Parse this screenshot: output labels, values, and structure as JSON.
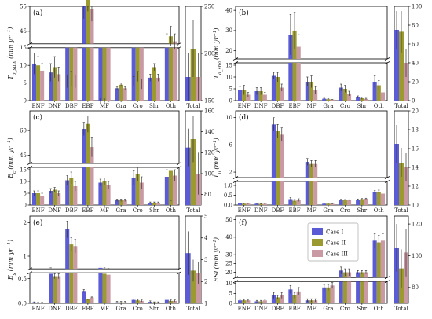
{
  "legend": [
    {
      "name": "Case I",
      "color": "#5b5bd6"
    },
    {
      "name": "Case II",
      "color": "#9a9a30"
    },
    {
      "name": "Case III",
      "color": "#c99aa3"
    }
  ],
  "categories": [
    "ENF",
    "DNF",
    "DBF",
    "EBF",
    "MF",
    "Gra",
    "Cro",
    "Shr",
    "Oth"
  ],
  "total_label": "Total",
  "chart_data": [
    {
      "type": "bar",
      "panel": "(a)",
      "ylabel": "T_o_sum (mm yr⁻¹)",
      "ylabel_parts": {
        "main": "T",
        "sub": "o_sum",
        "unit": "(mm yr",
        "exp": "−1",
        "close": ")"
      },
      "lower_range": [
        0,
        15
      ],
      "lower_ticks": [
        0,
        5,
        10,
        15
      ],
      "upper_range": [
        40,
        55
      ],
      "upper_ticks": [
        45,
        55
      ],
      "series": [
        {
          "name": "Case I",
          "values": [
            10.5,
            8,
            25,
            55,
            17,
            3.5,
            25,
            6.5,
            40
          ],
          "err": [
            3,
            2.5,
            2.5,
            5,
            1,
            0.5,
            2,
            1,
            4
          ]
        },
        {
          "name": "Case II",
          "values": [
            10,
            9.5,
            26,
            59,
            17,
            4.5,
            27,
            9.5,
            43
          ],
          "err": [
            2.5,
            3,
            3,
            6,
            1,
            0.5,
            2,
            1,
            4
          ]
        },
        {
          "name": "Case III",
          "values": [
            8.5,
            7.5,
            25,
            54,
            16,
            3.5,
            24,
            6.5,
            41
          ],
          "err": [
            2,
            2,
            2.5,
            5,
            1,
            0.5,
            2,
            1,
            3
          ]
        }
      ],
      "total": {
        "range": [
          150,
          250
        ],
        "ticks": [
          150,
          200,
          250
        ],
        "values": [
          175,
          205,
          175
        ],
        "err": [
          25,
          30,
          25
        ]
      }
    },
    {
      "type": "bar",
      "panel": "(b)",
      "ylabel": "T_o_sha (mm yr⁻¹)",
      "ylabel_parts": {
        "main": "T",
        "sub": "o_sha",
        "unit": "(mm yr",
        "exp": "−1",
        "close": ")"
      },
      "lower_range": [
        0,
        16
      ],
      "lower_ticks": [
        0,
        5,
        10,
        15
      ],
      "upper_range": [
        16,
        42
      ],
      "upper_ticks": [
        20,
        30,
        40
      ],
      "series": [
        {
          "name": "Case I",
          "values": [
            4.5,
            4,
            10.5,
            28,
            8,
            0.8,
            5.5,
            1.5,
            8
          ],
          "err": [
            1.5,
            1.5,
            1.5,
            10,
            2,
            0.2,
            1.5,
            0.5,
            2.5
          ]
        },
        {
          "name": "Case II",
          "values": [
            4.5,
            4,
            10,
            30,
            8,
            0.6,
            5,
            1,
            6.5
          ],
          "err": [
            2,
            1.5,
            2,
            9,
            2.5,
            0.2,
            1.5,
            0.5,
            2
          ]
        },
        {
          "name": "Case III",
          "values": [
            2.5,
            2.5,
            5.5,
            22,
            4.5,
            0.4,
            3,
            0.7,
            3.5
          ],
          "err": [
            1,
            1,
            1.5,
            6,
            1.5,
            0.1,
            1,
            0.3,
            1
          ]
        }
      ],
      "total": {
        "range": [
          0,
          100
        ],
        "ticks": [
          0,
          20,
          40,
          60,
          80,
          100
        ],
        "values": [
          75,
          73,
          40
        ],
        "err": [
          20,
          22,
          15
        ]
      }
    },
    {
      "type": "bar",
      "panel": "(c)",
      "ylabel": "E_c (mm yr⁻¹)",
      "ylabel_parts": {
        "main": "E",
        "sub": "c",
        "unit": "(mm yr",
        "exp": "−1",
        "close": ")"
      },
      "lower_range": [
        0,
        16
      ],
      "lower_ticks": [
        0,
        5,
        10,
        15
      ],
      "upper_range": [
        40,
        72
      ],
      "upper_ticks": [
        45,
        60
      ],
      "series": [
        {
          "name": "Case I",
          "values": [
            5,
            6,
            10.5,
            61,
            9.5,
            2,
            11.5,
            1,
            12
          ],
          "err": [
            1,
            1,
            2,
            4,
            1.5,
            0.5,
            3,
            0.3,
            3
          ]
        },
        {
          "name": "Case II",
          "values": [
            5,
            6.5,
            11.5,
            64,
            10,
            2,
            13,
            1,
            14.5
          ],
          "err": [
            1,
            1,
            2.5,
            5,
            1.5,
            0.5,
            3,
            0.3,
            3
          ]
        },
        {
          "name": "Case III",
          "values": [
            4,
            5,
            8,
            50,
            8.5,
            2,
            9.5,
            1,
            12.5
          ],
          "err": [
            1,
            1,
            2,
            6,
            1.5,
            0.5,
            2.5,
            0.3,
            2.5
          ]
        }
      ],
      "total": {
        "range": [
          70,
          160
        ],
        "ticks": [
          80,
          100,
          120,
          140,
          160
        ],
        "values": [
          125,
          133,
          100
        ],
        "err": [
          18,
          22,
          20
        ]
      }
    },
    {
      "type": "bar",
      "panel": "(d)",
      "ylabel": "T_u (mm yr⁻¹)",
      "ylabel_parts": {
        "main": "T",
        "sub": "u",
        "unit": "(mm yr",
        "exp": "−1",
        "close": ")"
      },
      "lower_range": [
        0,
        1.2
      ],
      "lower_ticks": [
        0.0,
        0.5,
        1.0
      ],
      "upper_range": [
        1.2,
        11
      ],
      "upper_ticks": [
        2,
        6,
        10
      ],
      "series": [
        {
          "name": "Case I",
          "values": [
            0.08,
            0.07,
            9,
            0.3,
            3.5,
            0.07,
            0.27,
            0.28,
            0.65
          ],
          "err": [
            0.02,
            0.02,
            1,
            0.08,
            0.5,
            0.02,
            0.02,
            0.03,
            0.08
          ]
        },
        {
          "name": "Case II",
          "values": [
            0.07,
            0.06,
            8,
            0.22,
            3.2,
            0.07,
            0.26,
            0.3,
            0.68
          ],
          "err": [
            0.02,
            0.02,
            1,
            0.06,
            0.5,
            0.02,
            0.02,
            0.03,
            0.08
          ]
        },
        {
          "name": "Case III",
          "values": [
            0.07,
            0.06,
            7.5,
            0.25,
            3.2,
            0.06,
            0.25,
            0.32,
            0.58
          ],
          "err": [
            0.02,
            0.02,
            1,
            0.07,
            0.5,
            0.02,
            0.02,
            0.03,
            0.08
          ]
        }
      ],
      "total": {
        "range": [
          10,
          20
        ],
        "ticks": [
          10,
          12,
          14,
          16,
          18,
          20
        ],
        "values": [
          16.5,
          14.5,
          14
        ],
        "err": [
          2,
          1.5,
          1.5
        ]
      }
    },
    {
      "type": "bar",
      "panel": "(e)",
      "ylabel": "E_s (mm yr⁻¹)",
      "ylabel_parts": {
        "main": "E",
        "sub": "s",
        "unit": "(mm yr",
        "exp": "−1",
        "close": ")"
      },
      "lower_range": [
        0,
        0.62
      ],
      "lower_ticks": [
        0.0,
        0.5
      ],
      "upper_range": [
        0.62,
        2.2
      ],
      "upper_ticks": [
        1,
        2
      ],
      "series": [
        {
          "name": "Case I",
          "values": [
            0.02,
            0.6,
            1.8,
            0.25,
            0.65,
            0.02,
            0.07,
            0.03,
            0.07
          ],
          "err": [
            0.01,
            0.05,
            0.25,
            0.03,
            0.05,
            0.02,
            0.02,
            0.02,
            0.02
          ]
        },
        {
          "name": "Case II",
          "values": [
            0.01,
            0.55,
            1.35,
            0.08,
            0.6,
            0.02,
            0.06,
            0.02,
            0.05
          ],
          "err": [
            0.01,
            0.05,
            0.2,
            0.01,
            0.05,
            0.02,
            0.02,
            0.01,
            0.02
          ]
        },
        {
          "name": "Case III",
          "values": [
            0.01,
            0.55,
            1.3,
            0.12,
            0.58,
            0.02,
            0.05,
            0.02,
            0.05
          ],
          "err": [
            0.01,
            0.05,
            0.2,
            0.01,
            0.05,
            0.02,
            0.02,
            0.01,
            0.02
          ]
        }
      ],
      "total": {
        "range": [
          1,
          5
        ],
        "ticks": [
          1,
          2,
          3,
          4,
          5
        ],
        "values": [
          3.3,
          2.5,
          2.4
        ],
        "err": [
          1,
          0.5,
          0.5
        ]
      }
    },
    {
      "type": "bar",
      "panel": "(f)",
      "ylabel": "ESI (mm yr⁻¹)",
      "ylabel_parts": {
        "main": "ESI",
        "sub": "",
        "unit": "(mm yr",
        "exp": "−1",
        "close": ")"
      },
      "lower_range": [
        0,
        11
      ],
      "lower_ticks": [
        0,
        5,
        10
      ],
      "upper_range": [
        17,
        52
      ],
      "upper_ticks": [
        20,
        25,
        30,
        40,
        50
      ],
      "series": [
        {
          "name": "Case I",
          "values": [
            1.5,
            1,
            4,
            7,
            1.5,
            8,
            21,
            20,
            38
          ],
          "err": [
            0.5,
            0.5,
            1.5,
            2,
            0.8,
            1.5,
            2,
            1,
            4
          ]
        },
        {
          "name": "Case II",
          "values": [
            1.5,
            1,
            3,
            4,
            1.5,
            8,
            20,
            20,
            37
          ],
          "err": [
            0.5,
            0.5,
            1,
            1.5,
            0.8,
            1.5,
            2,
            1,
            4
          ]
        },
        {
          "name": "Case III",
          "values": [
            1.5,
            1.5,
            4,
            6,
            1.5,
            9,
            20,
            20,
            38
          ],
          "err": [
            0.5,
            0.5,
            1.5,
            2,
            0.8,
            1.5,
            2,
            1,
            4
          ]
        }
      ],
      "total": {
        "range": [
          70,
          125
        ],
        "ticks": [
          80,
          100,
          120
        ],
        "values": [
          105,
          92,
          102
        ],
        "err": [
          15,
          12,
          15
        ]
      }
    }
  ]
}
